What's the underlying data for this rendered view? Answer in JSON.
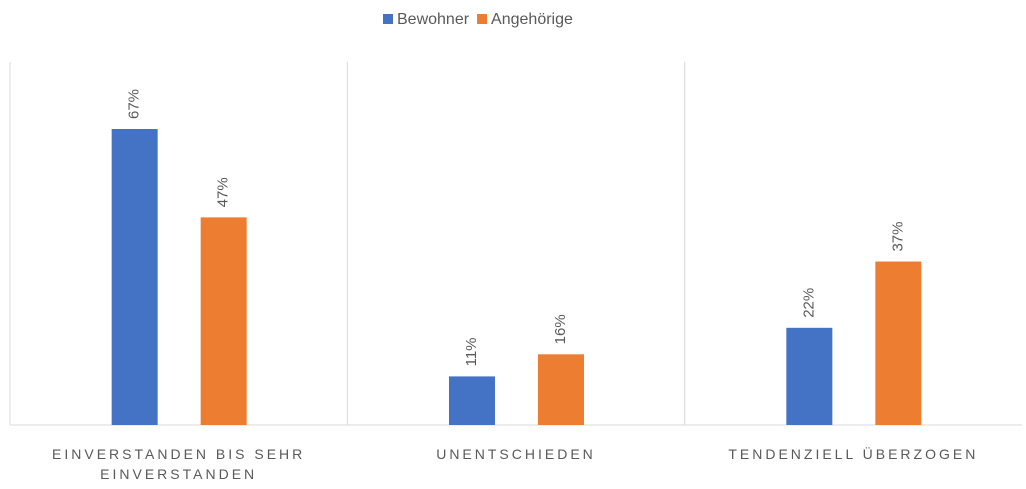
{
  "chart_data": {
    "type": "bar",
    "categories": [
      "EINVERSTANDEN BIS SEHR EINVERSTANDEN",
      "UNENTSCHIEDEN",
      "TENDENZIELL ÜBERZOGEN"
    ],
    "series": [
      {
        "name": "Bewohner",
        "color": "#4472c4",
        "values": [
          67,
          11,
          22
        ],
        "value_labels": [
          "67%",
          "11%",
          "22%"
        ]
      },
      {
        "name": "Angehörige",
        "color": "#ed7d31",
        "values": [
          47,
          16,
          37
        ],
        "value_labels": [
          "47%",
          "16%",
          "37%"
        ]
      }
    ],
    "legend": "top"
  }
}
